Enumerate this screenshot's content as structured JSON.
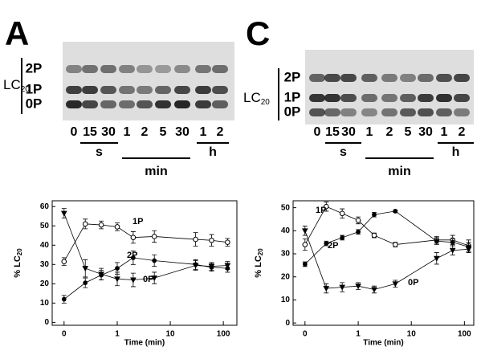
{
  "panels": [
    {
      "letter": "A",
      "blot_label": "LC",
      "blot_label_sub": "20",
      "bands": [
        "2P",
        "1P",
        "0P"
      ],
      "lanes": [
        "0",
        "15",
        "30",
        "1",
        "2",
        "5",
        "30",
        "1",
        "2"
      ],
      "groups": [
        "s",
        "min",
        "h"
      ]
    },
    {
      "letter": "C",
      "blot_label": "LC",
      "blot_label_sub": "20",
      "bands": [
        "2P",
        "1P",
        "0P"
      ],
      "lanes": [
        "0",
        "15",
        "30",
        "1",
        "2",
        "5",
        "30",
        "1",
        "2"
      ],
      "groups": [
        "s",
        "min",
        "h"
      ]
    }
  ],
  "chart_data": [
    {
      "type": "line",
      "xlabel": "Time (min)",
      "ylabel": "% LC",
      "ylabel_sub": "20",
      "x": [
        0,
        0.25,
        0.5,
        1,
        2,
        5,
        30,
        60,
        120
      ],
      "xscale": "symlog",
      "linthresh": 0.25,
      "linscale": 0.4,
      "xlim": [
        -0.14,
        180
      ],
      "xticks": [
        0,
        1,
        10,
        100
      ],
      "ylim": [
        -1.5,
        63
      ],
      "yticks": [
        0,
        10,
        20,
        30,
        40,
        50,
        60
      ],
      "series": [
        {
          "name": "1P",
          "color": "#000000",
          "marker": "open-circle",
          "values": [
            31.5,
            51,
            50.5,
            49.5,
            44,
            44.5,
            43,
            42.5,
            41.5
          ],
          "errors": [
            2,
            2.5,
            2,
            2,
            3,
            3,
            3.5,
            3,
            2
          ]
        },
        {
          "name": "2P",
          "color": "#000000",
          "marker": "circle",
          "values": [
            12,
            20.5,
            24.5,
            28,
            33.5,
            32,
            30,
            28.5,
            28
          ],
          "errors": [
            2,
            2.5,
            2.5,
            3,
            3.5,
            3,
            2.5,
            2,
            2
          ]
        },
        {
          "name": "0P",
          "color": "#000000",
          "marker": "triangle",
          "values": [
            56.5,
            28,
            25,
            22.5,
            22,
            23,
            29.5,
            29,
            29.5
          ],
          "errors": [
            2.5,
            4.5,
            3,
            3.5,
            3.5,
            3,
            2.5,
            2,
            2
          ]
        }
      ]
    },
    {
      "type": "line",
      "xlabel": "Time (min)",
      "ylabel": "% LC",
      "ylabel_sub": "20",
      "x": [
        0,
        0.25,
        0.5,
        1,
        2,
        5,
        30,
        60,
        120
      ],
      "xscale": "symlog",
      "linthresh": 0.25,
      "linscale": 0.4,
      "xlim": [
        -0.14,
        150
      ],
      "xticks": [
        0,
        1,
        10,
        100
      ],
      "ylim": [
        -1,
        53
      ],
      "yticks": [
        0,
        10,
        20,
        30,
        40,
        50
      ],
      "series": [
        {
          "name": "1P",
          "color": "#000000",
          "marker": "open-circle",
          "values": [
            34,
            50.5,
            47.5,
            44.5,
            38,
            34,
            36,
            36,
            33.5
          ],
          "errors": [
            2.5,
            2,
            2,
            1.5,
            1,
            1,
            1.5,
            2,
            2.5
          ]
        },
        {
          "name": "2P",
          "color": "#000000",
          "marker": "circle",
          "values": [
            25.5,
            34.5,
            37,
            39.5,
            47,
            48.5,
            35.5,
            35,
            33
          ],
          "errors": [
            1,
            1,
            1,
            1,
            1,
            0.5,
            1.5,
            1.5,
            2
          ]
        },
        {
          "name": "0P",
          "color": "#000000",
          "marker": "triangle",
          "values": [
            40,
            15,
            15.5,
            16,
            14.5,
            17,
            28,
            31.5,
            32
          ],
          "errors": [
            2,
            2,
            2,
            1.5,
            1.5,
            1.5,
            2.5,
            2,
            1.5
          ]
        }
      ]
    }
  ]
}
